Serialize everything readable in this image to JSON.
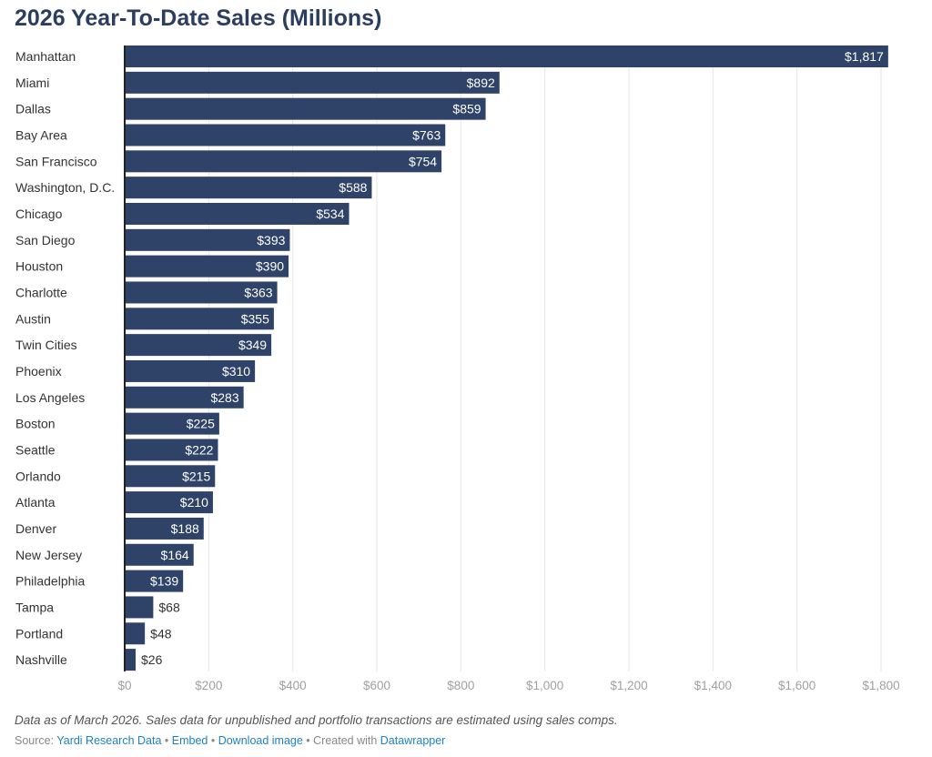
{
  "chart_data": {
    "type": "bar",
    "orientation": "horizontal",
    "title": "2026 Year-To-Date Sales (Millions)",
    "categories": [
      "Manhattan",
      "Miami",
      "Dallas",
      "Bay Area",
      "San Francisco",
      "Washington, D.C.",
      "Chicago",
      "San Diego",
      "Houston",
      "Charlotte",
      "Austin",
      "Twin Cities",
      "Phoenix",
      "Los Angeles",
      "Boston",
      "Seattle",
      "Orlando",
      "Atlanta",
      "Denver",
      "New Jersey",
      "Philadelphia",
      "Tampa",
      "Portland",
      "Nashville"
    ],
    "values": [
      1817,
      892,
      859,
      763,
      754,
      588,
      534,
      393,
      390,
      363,
      355,
      349,
      310,
      283,
      225,
      222,
      215,
      210,
      188,
      164,
      139,
      68,
      48,
      26
    ],
    "value_labels": [
      "$1,817",
      "$892",
      "$859",
      "$763",
      "$754",
      "$588",
      "$534",
      "$393",
      "$390",
      "$363",
      "$355",
      "$349",
      "$310",
      "$283",
      "$225",
      "$222",
      "$215",
      "$210",
      "$188",
      "$164",
      "$139",
      "$68",
      "$48",
      "$26"
    ],
    "xlim": [
      0,
      1800
    ],
    "x_ticks": [
      0,
      200,
      400,
      600,
      800,
      1000,
      1200,
      1400,
      1600,
      1800
    ],
    "x_tick_labels": [
      "$0",
      "$200",
      "$400",
      "$600",
      "$800",
      "$1,000",
      "$1,200",
      "$1,400",
      "$1,600",
      "$1,800"
    ],
    "grid": true,
    "bar_color": "#2f4368",
    "xlabel": "",
    "ylabel": ""
  },
  "notes": "Data as of March 2026. Sales data for unpublished and portfolio transactions are estimated using sales comps.",
  "footer": {
    "source_prefix": "Source: ",
    "source_link": "Yardi Research Data",
    "sep1": " • ",
    "embed": "Embed",
    "sep2": "  • ",
    "download": "Download image",
    "sep3": " • Created with ",
    "datawrapper": "Datawrapper"
  }
}
